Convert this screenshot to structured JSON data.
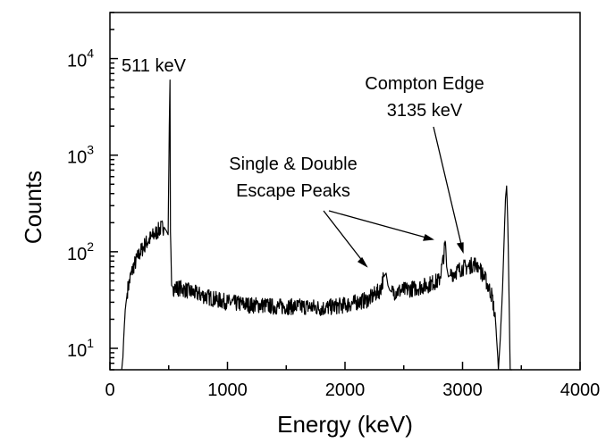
{
  "chart_data": {
    "type": "line",
    "title": "",
    "xlabel": "Energy (keV)",
    "ylabel": "Counts",
    "xlim": [
      0,
      4000
    ],
    "ylim": [
      6,
      30000
    ],
    "y_scale": "log",
    "grid": false,
    "legend": "none",
    "line_color": "#000000",
    "x_ticks": [
      {
        "value": 0,
        "label": "0"
      },
      {
        "value": 1000,
        "label": "1000"
      },
      {
        "value": 2000,
        "label": "2000"
      },
      {
        "value": 3000,
        "label": "3000"
      },
      {
        "value": 4000,
        "label": "4000"
      }
    ],
    "x_minor_ticks": [
      500,
      1500,
      2500,
      3500
    ],
    "y_ticks": [
      {
        "value": 10,
        "base": "10",
        "exp": "1"
      },
      {
        "value": 100,
        "base": "10",
        "exp": "2"
      },
      {
        "value": 1000,
        "base": "10",
        "exp": "3"
      },
      {
        "value": 10000,
        "base": "10",
        "exp": "4"
      }
    ],
    "series": [
      {
        "x": [
          100,
          110,
          120,
          130,
          150,
          175,
          200,
          250,
          300,
          350,
          400,
          430,
          460,
          480,
          495,
          505,
          511,
          515,
          525,
          540,
          600,
          700,
          800,
          900,
          1000,
          1100,
          1200,
          1300,
          1400,
          1500,
          1600,
          1700,
          1800,
          1900,
          2000,
          2100,
          2200,
          2250,
          2300,
          2330,
          2350,
          2365,
          2380,
          2400,
          2500,
          2600,
          2700,
          2750,
          2800,
          2830,
          2855,
          2865,
          2880,
          2900,
          2950,
          3000,
          3050,
          3100,
          3135,
          3150,
          3200,
          3250,
          3280,
          3300,
          3305,
          3320,
          3340,
          3355,
          3365,
          3375,
          3385,
          3395,
          3405,
          3420
        ],
        "y": [
          6,
          8,
          15,
          25,
          40,
          55,
          70,
          95,
          120,
          140,
          160,
          175,
          180,
          165,
          150,
          2000,
          6000,
          160,
          45,
          42,
          42,
          38,
          35,
          32,
          30,
          29,
          28,
          28,
          27,
          27,
          27,
          27,
          26,
          27,
          28,
          30,
          32,
          36,
          40,
          55,
          60,
          45,
          40,
          38,
          40,
          42,
          45,
          48,
          50,
          75,
          125,
          70,
          55,
          58,
          63,
          68,
          70,
          75,
          72,
          65,
          50,
          35,
          20,
          8,
          6,
          12,
          40,
          150,
          350,
          480,
          200,
          40,
          6,
          6
        ]
      }
    ],
    "annotations": [
      {
        "lines": [
          "511 keV"
        ]
      },
      {
        "lines": [
          "Single & Double",
          "Escape Peaks"
        ]
      },
      {
        "lines": [
          "Compton Edge",
          "3135 keV"
        ]
      }
    ]
  }
}
